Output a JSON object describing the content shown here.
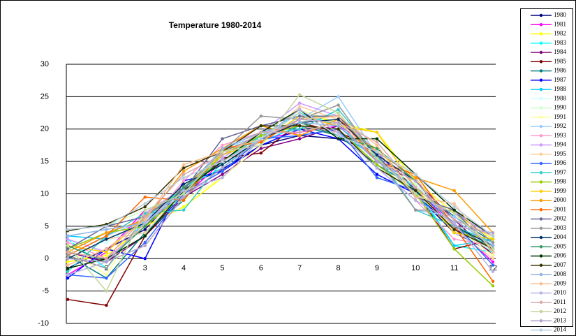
{
  "chart_data": {
    "type": "line",
    "title": "Temperature 1980-2014",
    "categories": [
      "1",
      "2",
      "3",
      "4",
      "5",
      "6",
      "7",
      "8",
      "9",
      "10",
      "11",
      "12"
    ],
    "ylim": [
      -10,
      30
    ],
    "yticks": [
      -10,
      -5,
      0,
      5,
      10,
      15,
      20,
      25,
      30
    ],
    "grid": true,
    "legend": "right",
    "series": [
      {
        "name": "1980",
        "color": "#000080",
        "values": [
          -1.5,
          1.5,
          4.5,
          11,
          13.8,
          17.5,
          19,
          18.5,
          16.5,
          10,
          4,
          1
        ]
      },
      {
        "name": "1981",
        "color": "#ff00ff",
        "values": [
          -2.5,
          1,
          7.5,
          9.5,
          15,
          18.5,
          19.5,
          20.5,
          17,
          10.5,
          5,
          -0.5
        ]
      },
      {
        "name": "1982",
        "color": "#ffff00",
        "values": [
          -0.5,
          0.5,
          5,
          8,
          12.5,
          18.5,
          22.5,
          21,
          19.5,
          12,
          7,
          3
        ]
      },
      {
        "name": "1983",
        "color": "#00ffff",
        "values": [
          3,
          -1.5,
          6,
          11,
          14,
          19,
          22.5,
          20.5,
          15.5,
          11,
          2,
          1
        ]
      },
      {
        "name": "1984",
        "color": "#800080",
        "values": [
          1,
          -0.5,
          3.5,
          9.5,
          13,
          17,
          18.5,
          20.5,
          15,
          12,
          6,
          0.5
        ]
      },
      {
        "name": "1985",
        "color": "#800000",
        "values": [
          -6.3,
          -7.2,
          3.5,
          10,
          15.5,
          16.3,
          21,
          19.5,
          17,
          10.5,
          1.5,
          3
        ]
      },
      {
        "name": "1986",
        "color": "#008080",
        "values": [
          0.5,
          -3,
          4,
          9,
          16.5,
          19,
          20.5,
          19,
          14.5,
          11,
          6.5,
          2.5
        ]
      },
      {
        "name": "1987",
        "color": "#0000ff",
        "values": [
          -3,
          1.5,
          0,
          12,
          13.5,
          17.5,
          20,
          18.5,
          13,
          10,
          4.5,
          1.5
        ]
      },
      {
        "name": "1988",
        "color": "#00ccff",
        "values": [
          3.5,
          3,
          4,
          10,
          16,
          18,
          20.5,
          19.5,
          15.5,
          10.5,
          2,
          3
        ]
      },
      {
        "name": "1988",
        "color": "#ccffff",
        "values": [
          2.5,
          2.5,
          6,
          10.5,
          17,
          19.5,
          21,
          21.5,
          15,
          11,
          4,
          1.5
        ]
      },
      {
        "name": "1990",
        "color": "#ccffcc",
        "values": [
          1.5,
          5,
          7.5,
          9.5,
          16,
          19.5,
          21,
          22.5,
          15,
          11.5,
          5,
          1
        ]
      },
      {
        "name": "1991",
        "color": "#ffff99",
        "values": [
          1.5,
          -2.5,
          7,
          9,
          12.5,
          17.5,
          23,
          21,
          17,
          10,
          5,
          0.5
        ]
      },
      {
        "name": "1992",
        "color": "#99ccff",
        "values": [
          0.5,
          3.5,
          6,
          10.5,
          17,
          19,
          21.5,
          25,
          16,
          7.5,
          6.5,
          2
        ]
      },
      {
        "name": "1993",
        "color": "#ff99cc",
        "values": [
          2.5,
          0,
          5,
          12,
          17.5,
          19.5,
          20.5,
          19.5,
          14,
          9,
          3,
          2
        ]
      },
      {
        "name": "1994",
        "color": "#cc99ff",
        "values": [
          3,
          1,
          7,
          11,
          15.5,
          19.5,
          24,
          22,
          16.5,
          9.5,
          7,
          3.5
        ]
      },
      {
        "name": "1995",
        "color": "#ffcc99",
        "values": [
          0,
          3,
          4,
          10.5,
          15,
          18,
          23.5,
          21.5,
          15,
          12.5,
          4.5,
          0
        ]
      },
      {
        "name": "1996",
        "color": "#3366ff",
        "values": [
          -2.5,
          -3,
          2.5,
          10,
          13.5,
          18.5,
          19,
          20,
          12.5,
          10.5,
          5.5,
          -1
        ]
      },
      {
        "name": "1997",
        "color": "#33cccc",
        "values": [
          -2,
          3.5,
          7,
          7.5,
          15,
          19,
          20,
          23,
          16,
          7.5,
          5,
          2.5
        ]
      },
      {
        "name": "1998",
        "color": "#99cc00",
        "values": [
          1.5,
          4,
          5,
          10,
          16,
          19,
          20.5,
          20,
          14.5,
          10,
          1.5,
          -4.2
        ]
      },
      {
        "name": "1999",
        "color": "#ffcc00",
        "values": [
          2,
          1,
          6.5,
          11,
          16,
          18,
          22,
          20.5,
          19.5,
          11,
          4,
          3
        ]
      },
      {
        "name": "2000",
        "color": "#ff9900",
        "values": [
          1,
          4,
          6,
          13.5,
          17,
          20.5,
          19,
          21.5,
          16.5,
          12.5,
          10.5,
          4
        ]
      },
      {
        "name": "2001",
        "color": "#ff6600",
        "values": [
          0.5,
          3.5,
          9.5,
          9,
          17,
          18,
          21.5,
          22,
          15,
          13,
          5,
          -3.5
        ]
      },
      {
        "name": "2002",
        "color": "#666699",
        "values": [
          1.5,
          5,
          6.5,
          10.5,
          18.5,
          20.5,
          22,
          22,
          16,
          9.5,
          7.5,
          1
        ]
      },
      {
        "name": "2003",
        "color": "#969696",
        "values": [
          0.5,
          -1.5,
          6.5,
          11,
          16.5,
          22,
          21.5,
          23.7,
          15.5,
          7.5,
          7.5,
          2.5
        ]
      },
      {
        "name": "2004",
        "color": "#003366",
        "values": [
          0,
          3,
          5.5,
          11.5,
          14.5,
          18.5,
          21,
          21.5,
          16,
          12,
          5,
          2
        ]
      },
      {
        "name": "2005",
        "color": "#339966",
        "values": [
          2,
          -0.5,
          5,
          11,
          15,
          19.5,
          21,
          19,
          17,
          12,
          5,
          1.5
        ]
      },
      {
        "name": "2006",
        "color": "#003300",
        "values": [
          -1.5,
          0,
          3.5,
          10.5,
          15,
          19.5,
          23,
          18.5,
          18.5,
          13,
          7.5,
          3.5
        ]
      },
      {
        "name": "2007",
        "color": "#333300",
        "values": [
          4.3,
          5.3,
          8,
          14,
          16.5,
          20.5,
          20.5,
          20,
          14,
          10.5,
          4.5,
          1.5
        ]
      },
      {
        "name": "2008",
        "color": "#8eb4e3",
        "values": [
          3.5,
          4.5,
          5.5,
          10,
          17,
          19.5,
          21,
          20.5,
          15,
          11,
          6,
          2
        ]
      },
      {
        "name": "2009",
        "color": "#fabf8f",
        "values": [
          -1,
          1.5,
          6,
          14.5,
          16.5,
          18.5,
          21.5,
          22,
          17.5,
          9.5,
          8.5,
          1
        ]
      },
      {
        "name": "2010",
        "color": "#b3b3e6",
        "values": [
          -2.5,
          -0.5,
          5.5,
          10.5,
          12.5,
          18.5,
          23,
          19.5,
          14,
          9,
          5.5,
          -2
        ]
      },
      {
        "name": "2011",
        "color": "#d8a8a8",
        "values": [
          1,
          0,
          6.5,
          13,
          16,
          19.5,
          19.5,
          21,
          18,
          11,
          6,
          3.5
        ]
      },
      {
        "name": "2012",
        "color": "#c3d69b",
        "values": [
          2,
          -5,
          7.5,
          10,
          16.5,
          17.5,
          25.3,
          22.5,
          15.5,
          10,
          7,
          1.5
        ]
      },
      {
        "name": "2013",
        "color": "#b2a1c7",
        "values": [
          0,
          -0.5,
          2,
          9.5,
          14,
          18.5,
          21.5,
          21,
          15,
          12,
          5,
          4
        ]
      },
      {
        "name": "2014",
        "color": "#b7cde0",
        "values": [
          4.5,
          5,
          8.5,
          12.5,
          15,
          18.5,
          22.5,
          19,
          16.5,
          13,
          8,
          3.5
        ]
      }
    ]
  }
}
